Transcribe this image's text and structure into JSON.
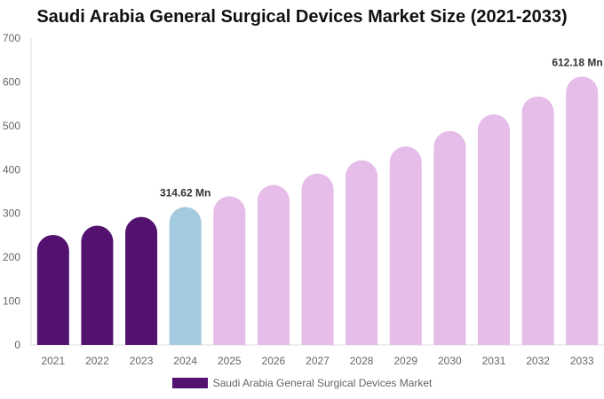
{
  "chart_data": {
    "type": "bar",
    "title": "Saudi Arabia General Surgical Devices Market Size (2021-2033)",
    "categories": [
      "2021",
      "2022",
      "2023",
      "2024",
      "2025",
      "2026",
      "2027",
      "2028",
      "2029",
      "2030",
      "2031",
      "2032",
      "2033"
    ],
    "series": [
      {
        "name": "Saudi Arabia General Surgical Devices Market",
        "values": [
          251,
          272,
          292,
          314.62,
          339,
          365,
          391,
          421,
          453,
          488,
          526,
          567,
          612.18
        ]
      }
    ],
    "data_labels": {
      "3": "314.62 Mn",
      "12": "612.18 Mn"
    },
    "ylim": [
      0,
      700
    ],
    "yticks": [
      0,
      100,
      200,
      300,
      400,
      500,
      600,
      700
    ],
    "grid": false,
    "legend": "bottom",
    "colors": {
      "historical": "#541270",
      "base": "#a4cadf",
      "forecast": "#e6bce8"
    }
  }
}
